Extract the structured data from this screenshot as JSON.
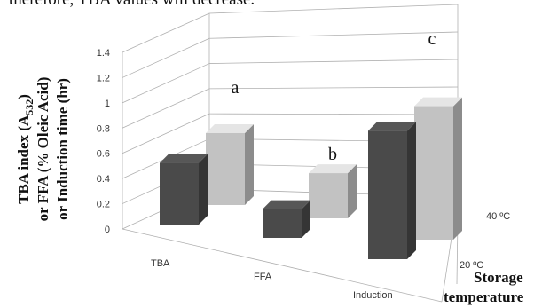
{
  "top_text": "therefore, TBA values will decrease.",
  "chart_data": {
    "type": "bar",
    "subtype": "3d-clustered-column",
    "categories": [
      "TBA",
      "FFA",
      "Induction"
    ],
    "depth_categories": [
      "20 ºC",
      "40 ºC"
    ],
    "y_ticks": [
      "0",
      "0.2",
      "0.4",
      "0.6",
      "0.8",
      "1",
      "1.2",
      "1.4"
    ],
    "ylim": [
      0,
      1.4
    ],
    "ylabel_lines": [
      "TBA index (A",
      "532",
      ")",
      "or FFA (% Oleic Acid)",
      "or Induction time (hr)"
    ],
    "depth_axis_title": [
      "Storage",
      "temperature"
    ],
    "series": [
      {
        "name": "20 ºC",
        "values": [
          0.6,
          0.28,
          1.25
        ]
      },
      {
        "name": "40 ºC",
        "values": [
          0.7,
          0.44,
          1.3
        ]
      }
    ],
    "annotations": [
      "a",
      "b",
      "c"
    ],
    "grid": true,
    "colors": {
      "front": "#4a4a4a",
      "back": "#c2c2c2",
      "grid": "#b0b0b0"
    }
  }
}
